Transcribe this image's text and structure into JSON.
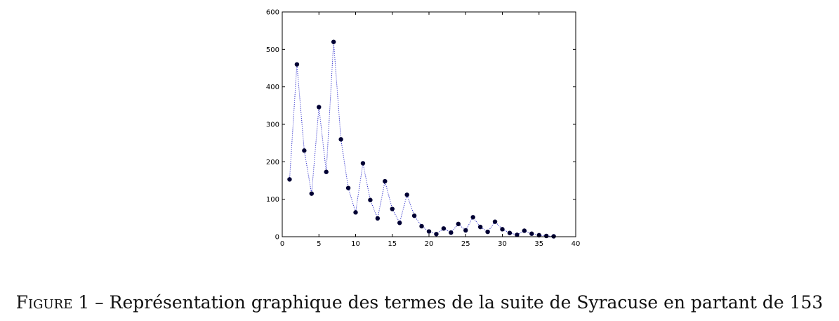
{
  "chart_data": {
    "type": "scatter",
    "title": "",
    "xlabel": "",
    "ylabel": "",
    "xlim": [
      0,
      40
    ],
    "ylim": [
      0,
      600
    ],
    "x_ticks": [
      "0",
      "5",
      "10",
      "15",
      "20",
      "25",
      "30",
      "35",
      "40"
    ],
    "y_ticks": [
      "0",
      "100",
      "200",
      "300",
      "400",
      "500",
      "600"
    ],
    "grid": false,
    "legend": "none",
    "marker_color": "#000033",
    "line_color": "#3333cc",
    "line_style": "dotted",
    "series": [
      {
        "x": [
          1,
          2,
          3,
          4,
          5,
          6,
          7,
          8,
          9,
          10,
          11,
          12,
          13,
          14,
          15,
          16,
          17,
          18,
          19,
          20,
          21,
          22,
          23,
          24,
          25,
          26,
          27,
          28,
          29,
          30,
          31,
          32,
          33,
          34,
          35,
          36,
          37
        ],
        "y": [
          153,
          460,
          230,
          115,
          346,
          173,
          520,
          260,
          130,
          65,
          196,
          98,
          49,
          148,
          74,
          37,
          112,
          56,
          28,
          14,
          7,
          22,
          11,
          34,
          17,
          52,
          26,
          13,
          40,
          20,
          10,
          5,
          16,
          8,
          4,
          2,
          1
        ]
      }
    ]
  },
  "caption": {
    "label": "Figure 1",
    "text": " – Représentation graphique des termes de la suite de Syracuse en partant de 153"
  }
}
